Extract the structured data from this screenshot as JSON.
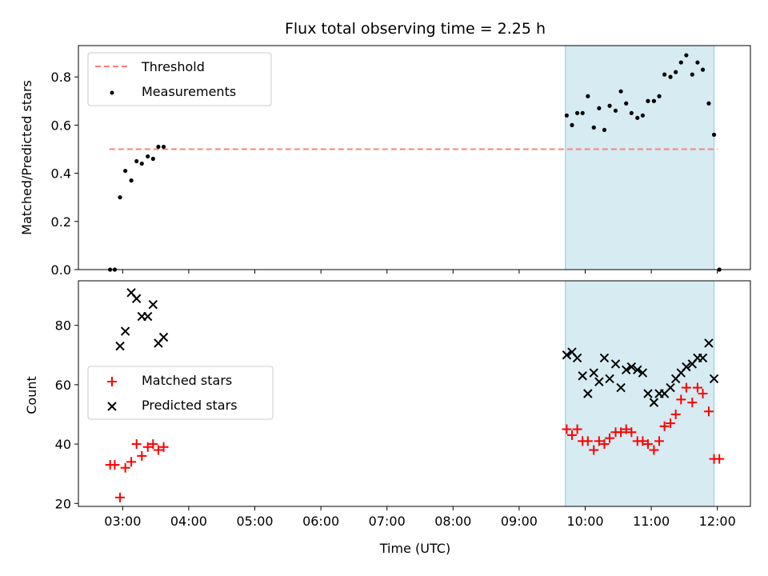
{
  "chart_data": {
    "type": "scatter",
    "title": "Flux total observing time = 2.25 h",
    "xlabel": "Time (UTC)",
    "x_ticks": [
      "03:00",
      "04:00",
      "05:00",
      "06:00",
      "07:00",
      "08:00",
      "09:00",
      "10:00",
      "11:00",
      "12:00"
    ],
    "x_range_hours": [
      2.33,
      12.5
    ],
    "shaded_window_hours": [
      9.7,
      11.95
    ],
    "shade_color": "#add8e6",
    "top_panel": {
      "ylabel": "Matched/Predicted stars",
      "ylim": [
        0,
        0.93
      ],
      "y_ticks": [
        "0.0",
        "0.2",
        "0.4",
        "0.6",
        "0.8"
      ],
      "y_tick_values": [
        0,
        0.2,
        0.4,
        0.6,
        0.8
      ],
      "legend": [
        "Threshold",
        "Measurements"
      ],
      "threshold": {
        "name": "Threshold",
        "value": 0.5,
        "x_range_hours": [
          2.8,
          12.0
        ],
        "color": "#ff7f7f"
      },
      "measurements": {
        "name": "Measurements",
        "color": "#000000",
        "points": [
          [
            2.81,
            0.0
          ],
          [
            2.88,
            0.0
          ],
          [
            2.96,
            0.3
          ],
          [
            3.04,
            0.41
          ],
          [
            3.13,
            0.37
          ],
          [
            3.21,
            0.45
          ],
          [
            3.29,
            0.44
          ],
          [
            3.38,
            0.47
          ],
          [
            3.46,
            0.46
          ],
          [
            3.54,
            0.51
          ],
          [
            3.62,
            0.51
          ],
          [
            9.72,
            0.64
          ],
          [
            9.8,
            0.6
          ],
          [
            9.88,
            0.65
          ],
          [
            9.96,
            0.65
          ],
          [
            10.04,
            0.72
          ],
          [
            10.13,
            0.59
          ],
          [
            10.21,
            0.67
          ],
          [
            10.29,
            0.58
          ],
          [
            10.37,
            0.68
          ],
          [
            10.46,
            0.66
          ],
          [
            10.54,
            0.74
          ],
          [
            10.62,
            0.69
          ],
          [
            10.7,
            0.65
          ],
          [
            10.79,
            0.63
          ],
          [
            10.87,
            0.64
          ],
          [
            10.95,
            0.7
          ],
          [
            11.04,
            0.7
          ],
          [
            11.12,
            0.72
          ],
          [
            11.2,
            0.81
          ],
          [
            11.29,
            0.8
          ],
          [
            11.37,
            0.82
          ],
          [
            11.45,
            0.86
          ],
          [
            11.53,
            0.89
          ],
          [
            11.62,
            0.81
          ],
          [
            11.7,
            0.86
          ],
          [
            11.78,
            0.83
          ],
          [
            11.87,
            0.69
          ],
          [
            11.95,
            0.56
          ],
          [
            12.03,
            0.0
          ]
        ]
      }
    },
    "bottom_panel": {
      "ylabel": "Count",
      "ylim": [
        19,
        95
      ],
      "y_ticks": [
        "20",
        "40",
        "60",
        "80"
      ],
      "y_tick_values": [
        20,
        40,
        60,
        80
      ],
      "legend": [
        "Matched stars",
        "Predicted stars"
      ],
      "series": [
        {
          "name": "Matched stars",
          "marker": "+",
          "color": "#ff0000",
          "points": [
            [
              2.81,
              33
            ],
            [
              2.88,
              33
            ],
            [
              2.96,
              22
            ],
            [
              3.04,
              32
            ],
            [
              3.13,
              34
            ],
            [
              3.21,
              40
            ],
            [
              3.29,
              36
            ],
            [
              3.38,
              39
            ],
            [
              3.46,
              40
            ],
            [
              3.54,
              38
            ],
            [
              3.62,
              39
            ],
            [
              9.72,
              45
            ],
            [
              9.8,
              43
            ],
            [
              9.88,
              45
            ],
            [
              9.96,
              41
            ],
            [
              10.04,
              41
            ],
            [
              10.13,
              38
            ],
            [
              10.21,
              41
            ],
            [
              10.29,
              40
            ],
            [
              10.37,
              42
            ],
            [
              10.46,
              44
            ],
            [
              10.54,
              44
            ],
            [
              10.62,
              45
            ],
            [
              10.7,
              44
            ],
            [
              10.79,
              41
            ],
            [
              10.87,
              41
            ],
            [
              10.95,
              40
            ],
            [
              11.04,
              38
            ],
            [
              11.12,
              41
            ],
            [
              11.2,
              46
            ],
            [
              11.29,
              47
            ],
            [
              11.37,
              50
            ],
            [
              11.45,
              55
            ],
            [
              11.53,
              59
            ],
            [
              11.62,
              54
            ],
            [
              11.7,
              59
            ],
            [
              11.78,
              57
            ],
            [
              11.87,
              51
            ],
            [
              11.95,
              35
            ],
            [
              12.03,
              35
            ]
          ]
        },
        {
          "name": "Predicted stars",
          "marker": "x",
          "color": "#000000",
          "points": [
            [
              2.96,
              73
            ],
            [
              3.04,
              78
            ],
            [
              3.13,
              91
            ],
            [
              3.21,
              89
            ],
            [
              3.29,
              83
            ],
            [
              3.38,
              83
            ],
            [
              3.46,
              87
            ],
            [
              3.54,
              74
            ],
            [
              3.62,
              76
            ],
            [
              9.72,
              70
            ],
            [
              9.8,
              71
            ],
            [
              9.88,
              69
            ],
            [
              9.96,
              63
            ],
            [
              10.04,
              57
            ],
            [
              10.13,
              64
            ],
            [
              10.21,
              61
            ],
            [
              10.29,
              69
            ],
            [
              10.37,
              62
            ],
            [
              10.46,
              67
            ],
            [
              10.54,
              59
            ],
            [
              10.62,
              65
            ],
            [
              10.7,
              66
            ],
            [
              10.79,
              65
            ],
            [
              10.87,
              64
            ],
            [
              10.95,
              57
            ],
            [
              11.04,
              54
            ],
            [
              11.12,
              57
            ],
            [
              11.2,
              57
            ],
            [
              11.29,
              59
            ],
            [
              11.37,
              62
            ],
            [
              11.45,
              64
            ],
            [
              11.53,
              66
            ],
            [
              11.62,
              67
            ],
            [
              11.7,
              69
            ],
            [
              11.78,
              69
            ],
            [
              11.87,
              74
            ],
            [
              11.95,
              62
            ]
          ]
        }
      ]
    }
  }
}
